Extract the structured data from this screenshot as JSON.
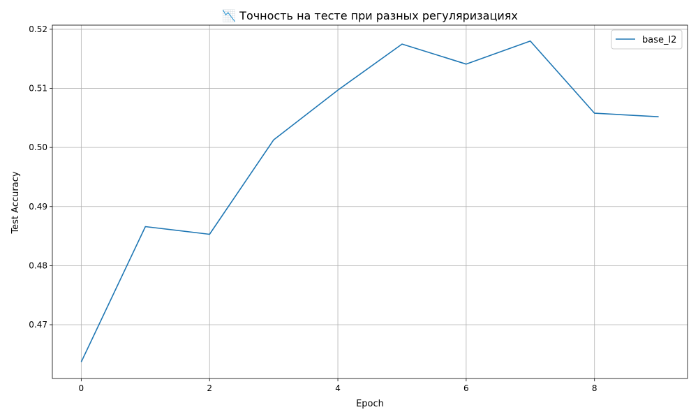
{
  "chart_data": {
    "type": "line",
    "title": "📉 Точность на тесте при разных регуляризациях",
    "xlabel": "Epoch",
    "ylabel": "Test Accuracy",
    "xlim": [
      -0.45,
      9.45
    ],
    "ylim": [
      0.4609,
      0.5207
    ],
    "xticks": [
      0,
      2,
      4,
      6,
      8
    ],
    "xtick_labels": [
      "0",
      "2",
      "4",
      "6",
      "8"
    ],
    "yticks": [
      0.47,
      0.48,
      0.49,
      0.5,
      0.51,
      0.52
    ],
    "ytick_labels": [
      "0.47",
      "0.48",
      "0.49",
      "0.50",
      "0.51",
      "0.52"
    ],
    "grid": true,
    "legend_position": "top-right",
    "series": [
      {
        "name": "base_l2",
        "color": "#1f77b4",
        "x": [
          0,
          1,
          2,
          3,
          4,
          5,
          6,
          7,
          8,
          9
        ],
        "y": [
          0.4637,
          0.4866,
          0.4853,
          0.5013,
          0.5097,
          0.5175,
          0.5141,
          0.518,
          0.5058,
          0.5052
        ]
      }
    ]
  }
}
